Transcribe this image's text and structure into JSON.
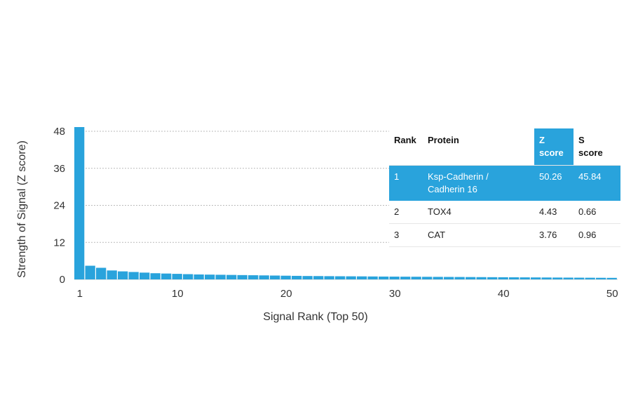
{
  "chart_data": {
    "type": "bar",
    "xlabel": "Signal Rank (Top 50)",
    "ylabel": "Strength of Signal (Z score)",
    "x_ticks": [
      "1",
      "10",
      "20",
      "30",
      "40",
      "50"
    ],
    "y_ticks": [
      "0",
      "12",
      "24",
      "36",
      "48"
    ],
    "xlim": [
      1,
      50
    ],
    "ylim": [
      0,
      48
    ],
    "grid": "horizontal dashed",
    "bar_color": "#29a3dc",
    "x": [
      1,
      2,
      3,
      4,
      5,
      6,
      7,
      8,
      9,
      10,
      11,
      12,
      13,
      14,
      15,
      16,
      17,
      18,
      19,
      20,
      21,
      22,
      23,
      24,
      25,
      26,
      27,
      28,
      29,
      30,
      31,
      32,
      33,
      34,
      35,
      36,
      37,
      38,
      39,
      40,
      41,
      42,
      43,
      44,
      45,
      46,
      47,
      48,
      49,
      50
    ],
    "values": [
      50.26,
      4.43,
      3.76,
      2.9,
      2.6,
      2.4,
      2.2,
      2.0,
      1.9,
      1.8,
      1.7,
      1.6,
      1.55,
      1.5,
      1.45,
      1.4,
      1.35,
      1.3,
      1.25,
      1.2,
      1.15,
      1.1,
      1.08,
      1.05,
      1.02,
      1.0,
      0.98,
      0.95,
      0.92,
      0.9,
      0.88,
      0.86,
      0.84,
      0.82,
      0.8,
      0.78,
      0.76,
      0.74,
      0.72,
      0.7,
      0.68,
      0.66,
      0.64,
      0.62,
      0.6,
      0.58,
      0.56,
      0.54,
      0.52,
      0.5
    ]
  },
  "table": {
    "headers": {
      "rank": "Rank",
      "protein": "Protein",
      "z_line1": "Z",
      "z_line2": "score",
      "s_line1": "S",
      "s_line2": "score"
    },
    "rows": [
      {
        "rank": "1",
        "protein_line1": "Ksp-Cadherin /",
        "protein_line2": "Cadherin 16",
        "z": "50.26",
        "s": "45.84"
      },
      {
        "rank": "2",
        "protein_line1": "TOX4",
        "protein_line2": "",
        "z": "4.43",
        "s": "0.66"
      },
      {
        "rank": "3",
        "protein_line1": "CAT",
        "protein_line2": "",
        "z": "3.76",
        "s": "0.96"
      }
    ],
    "highlight_color": "#29a3dc"
  }
}
